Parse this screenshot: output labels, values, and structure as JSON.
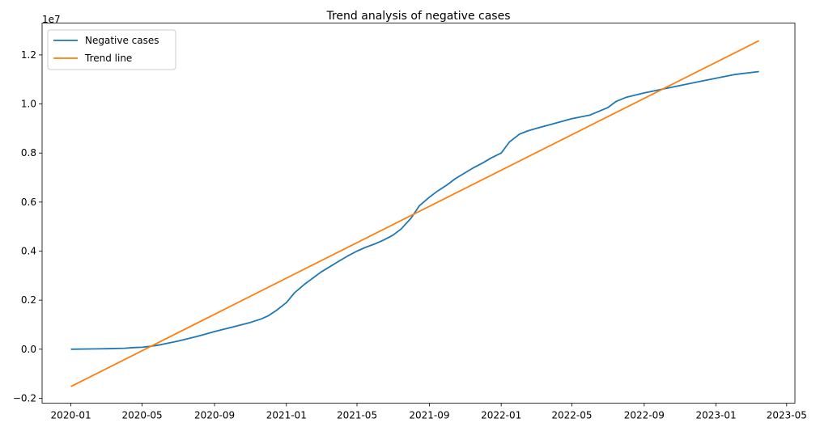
{
  "chart_data": {
    "type": "line",
    "title": "Trend analysis of negative cases",
    "xlabel": "",
    "ylabel": "",
    "y_scale_label": "1e7",
    "xlim": [
      "2019-11-13",
      "2023-05-15"
    ],
    "ylim": [
      -0.22,
      1.33
    ],
    "x_ticks": [
      "2020-01-01",
      "2020-05-01",
      "2020-09-01",
      "2021-01-01",
      "2021-05-01",
      "2021-09-01",
      "2022-01-01",
      "2022-05-01",
      "2022-09-01",
      "2023-01-01",
      "2023-05-01"
    ],
    "x_tick_labels": [
      "2020-01",
      "2020-05",
      "2020-09",
      "2021-01",
      "2021-05",
      "2021-09",
      "2022-01",
      "2022-05",
      "2022-09",
      "2023-01",
      "2023-05"
    ],
    "y_ticks": [
      -0.2,
      0.0,
      0.2,
      0.4,
      0.6,
      0.8,
      1.0,
      1.2
    ],
    "y_tick_labels": [
      "−0.2",
      "0.0",
      "0.2",
      "0.4",
      "0.6",
      "0.8",
      "1.0",
      "1.2"
    ],
    "grid": false,
    "legend_position": "top-left",
    "series": [
      {
        "name": "Negative cases",
        "color": "#1f77b4",
        "points": [
          [
            "2020-01-01",
            0.0
          ],
          [
            "2020-02-01",
            0.001
          ],
          [
            "2020-03-01",
            0.002
          ],
          [
            "2020-04-01",
            0.004
          ],
          [
            "2020-04-20",
            0.007
          ],
          [
            "2020-05-01",
            0.008
          ],
          [
            "2020-05-15",
            0.012
          ],
          [
            "2020-06-01",
            0.018
          ],
          [
            "2020-07-01",
            0.033
          ],
          [
            "2020-08-01",
            0.051
          ],
          [
            "2020-09-01",
            0.072
          ],
          [
            "2020-10-01",
            0.09
          ],
          [
            "2020-11-01",
            0.109
          ],
          [
            "2020-11-20",
            0.124
          ],
          [
            "2020-12-01",
            0.136
          ],
          [
            "2020-12-15",
            0.158
          ],
          [
            "2021-01-01",
            0.19
          ],
          [
            "2021-01-15",
            0.23
          ],
          [
            "2021-02-01",
            0.265
          ],
          [
            "2021-02-15",
            0.29
          ],
          [
            "2021-03-01",
            0.315
          ],
          [
            "2021-03-15",
            0.335
          ],
          [
            "2021-04-01",
            0.36
          ],
          [
            "2021-04-15",
            0.38
          ],
          [
            "2021-05-01",
            0.4
          ],
          [
            "2021-05-15",
            0.415
          ],
          [
            "2021-06-01",
            0.43
          ],
          [
            "2021-06-15",
            0.445
          ],
          [
            "2021-07-01",
            0.465
          ],
          [
            "2021-07-15",
            0.49
          ],
          [
            "2021-08-01",
            0.535
          ],
          [
            "2021-08-15",
            0.585
          ],
          [
            "2021-09-01",
            0.62
          ],
          [
            "2021-09-15",
            0.645
          ],
          [
            "2021-10-01",
            0.67
          ],
          [
            "2021-10-15",
            0.695
          ],
          [
            "2021-11-01",
            0.72
          ],
          [
            "2021-11-15",
            0.74
          ],
          [
            "2021-12-01",
            0.76
          ],
          [
            "2021-12-15",
            0.78
          ],
          [
            "2022-01-01",
            0.8
          ],
          [
            "2022-01-15",
            0.845
          ],
          [
            "2022-02-01",
            0.877
          ],
          [
            "2022-02-15",
            0.89
          ],
          [
            "2022-03-01",
            0.9
          ],
          [
            "2022-04-01",
            0.92
          ],
          [
            "2022-05-01",
            0.94
          ],
          [
            "2022-06-01",
            0.955
          ],
          [
            "2022-07-01",
            0.985
          ],
          [
            "2022-07-15",
            1.01
          ],
          [
            "2022-08-01",
            1.027
          ],
          [
            "2022-09-01",
            1.045
          ],
          [
            "2022-10-01",
            1.06
          ],
          [
            "2022-11-01",
            1.075
          ],
          [
            "2022-12-01",
            1.09
          ],
          [
            "2023-01-01",
            1.105
          ],
          [
            "2023-02-01",
            1.12
          ],
          [
            "2023-03-15",
            1.132
          ]
        ]
      },
      {
        "name": "Trend line",
        "color": "#ff7f0e",
        "points": [
          [
            "2020-01-01",
            -0.152
          ],
          [
            "2023-03-15",
            1.258
          ]
        ]
      }
    ]
  }
}
